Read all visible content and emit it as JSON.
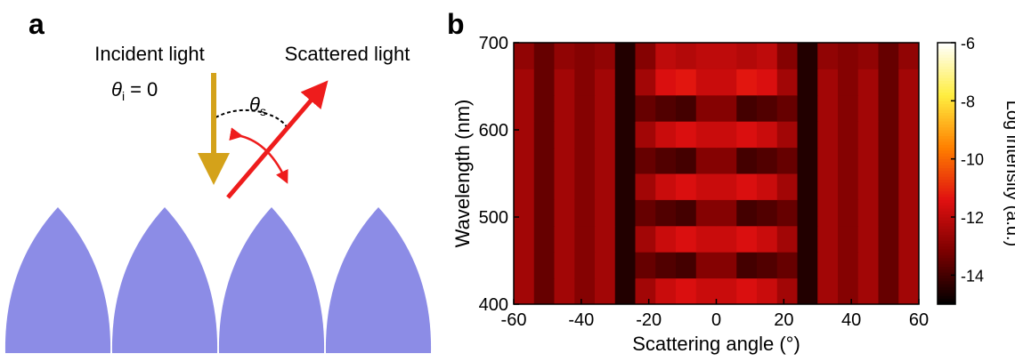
{
  "panel_a": {
    "label": "a",
    "incident": "Incident light",
    "incident_angle": {
      "symbol": "θ",
      "subscript": "i",
      "rest": "= 0"
    },
    "scattered": "Scattered light",
    "scattered_angle": {
      "symbol": "θ",
      "subscript": "s"
    }
  },
  "chart_data": {
    "type": "heatmap",
    "panel_label": "b",
    "xlabel": "Scattering angle (°)",
    "ylabel": "Wavelength (nm)",
    "colorbar_label": "Log intensity (a.u.)",
    "x": [
      -57,
      -51,
      -45,
      -39,
      -33,
      -27,
      -21,
      -15,
      -9,
      -3,
      3,
      9,
      15,
      21,
      27,
      33,
      39,
      45,
      51,
      57
    ],
    "y": [
      415,
      445,
      475,
      505,
      535,
      565,
      595,
      625,
      655,
      685
    ],
    "z": [
      [
        -12.5,
        -13.5,
        -12.5,
        -13,
        -12.5,
        -14.5,
        -12.5,
        -11.8,
        -11.5,
        -11.8,
        -11.8,
        -11.5,
        -11.8,
        -12.5,
        -14.5,
        -12.5,
        -13,
        -12.5,
        -13.5,
        -12.5
      ],
      [
        -12.5,
        -13.5,
        -12.5,
        -13,
        -12.5,
        -14.5,
        -13.5,
        -13.8,
        -14,
        -13,
        -13,
        -14,
        -13.8,
        -13.5,
        -14.5,
        -12.5,
        -13,
        -12.5,
        -13.5,
        -12.5
      ],
      [
        -12.5,
        -13.5,
        -12.5,
        -13,
        -12.5,
        -14.5,
        -12.5,
        -11.8,
        -11.5,
        -11.8,
        -11.8,
        -11.5,
        -11.8,
        -12.5,
        -14.5,
        -12.5,
        -13,
        -12.5,
        -13.5,
        -12.5
      ],
      [
        -12.5,
        -13.5,
        -12.5,
        -13,
        -12.5,
        -14.5,
        -13.5,
        -13.8,
        -14,
        -13,
        -13,
        -14,
        -13.8,
        -13.5,
        -14.5,
        -12.5,
        -13,
        -12.5,
        -13.5,
        -12.5
      ],
      [
        -12.5,
        -13.5,
        -12.5,
        -13,
        -12.5,
        -14.5,
        -12.5,
        -11.8,
        -11.5,
        -11.8,
        -11.8,
        -11.5,
        -11.8,
        -12.5,
        -14.5,
        -12.5,
        -13,
        -12.5,
        -13.5,
        -12.5
      ],
      [
        -12.5,
        -13.5,
        -12.5,
        -13,
        -12.5,
        -14.5,
        -13.5,
        -13.8,
        -14,
        -13,
        -13,
        -14,
        -13.8,
        -13.5,
        -14.5,
        -12.5,
        -13,
        -12.5,
        -13.5,
        -12.5
      ],
      [
        -12.5,
        -13.5,
        -12.5,
        -13,
        -12.5,
        -14.5,
        -12.5,
        -11.8,
        -11.5,
        -11.8,
        -11.8,
        -11.5,
        -11.8,
        -12.5,
        -14.5,
        -12.5,
        -13,
        -12.5,
        -13.5,
        -12.5
      ],
      [
        -12.5,
        -13.5,
        -12.5,
        -13,
        -12.5,
        -14.5,
        -13.5,
        -13.8,
        -14,
        -13,
        -13,
        -14,
        -13.8,
        -13.5,
        -14.5,
        -12.5,
        -13,
        -12.5,
        -13.5,
        -12.5
      ],
      [
        -12.5,
        -13.5,
        -12.5,
        -13,
        -12.5,
        -14.5,
        -12.5,
        -11.5,
        -11.3,
        -11.8,
        -11.8,
        -11.3,
        -11.5,
        -12.5,
        -14.5,
        -12.5,
        -13,
        -12.5,
        -13.5,
        -12.5
      ],
      [
        -12.8,
        -13.5,
        -12.8,
        -13,
        -12.8,
        -14.5,
        -13,
        -12,
        -12.2,
        -12,
        -12,
        -12.2,
        -12,
        -13,
        -14.5,
        -12.8,
        -13,
        -12.8,
        -13.5,
        -12.8
      ]
    ],
    "xlim": [
      -60,
      60
    ],
    "xticks": [
      -60,
      -40,
      -20,
      0,
      20,
      40,
      60
    ],
    "ylim": [
      400,
      700
    ],
    "yticks": [
      400,
      500,
      600,
      700
    ],
    "zlim": [
      -15,
      -6
    ],
    "zticks": [
      -6,
      -8,
      -10,
      -12,
      -14
    ],
    "colormap": [
      "#000000",
      "#7a0000",
      "#e01010",
      "#ff8000",
      "#ffee40",
      "#ffffff"
    ]
  }
}
